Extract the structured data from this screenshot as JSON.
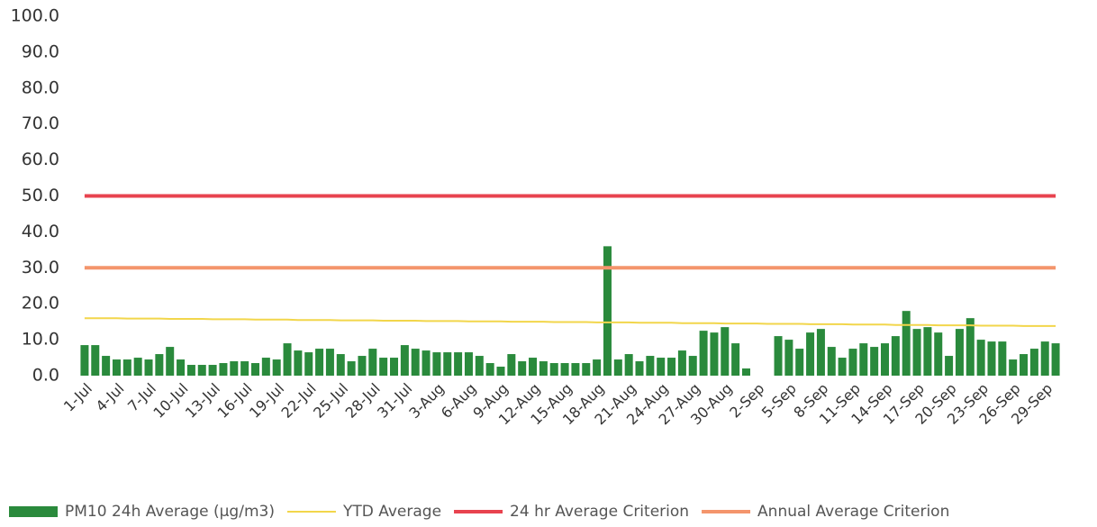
{
  "chart_data": {
    "type": "bar",
    "categories": [
      "1-Jul",
      null,
      null,
      "4-Jul",
      null,
      null,
      "7-Jul",
      null,
      null,
      "10-Jul",
      null,
      null,
      "13-Jul",
      null,
      null,
      "16-Jul",
      null,
      null,
      "19-Jul",
      null,
      null,
      "22-Jul",
      null,
      null,
      "25-Jul",
      null,
      null,
      "28-Jul",
      null,
      null,
      "31-Jul",
      null,
      null,
      "3-Aug",
      null,
      null,
      "6-Aug",
      null,
      null,
      "9-Aug",
      null,
      null,
      "12-Aug",
      null,
      null,
      "15-Aug",
      null,
      null,
      "18-Aug",
      null,
      null,
      "21-Aug",
      null,
      null,
      "24-Aug",
      null,
      null,
      "27-Aug",
      null,
      null,
      "30-Aug",
      null,
      null,
      "2-Sep",
      null,
      null,
      "5-Sep",
      null,
      null,
      "8-Sep",
      null,
      null,
      "11-Sep",
      null,
      null,
      "14-Sep",
      null,
      null,
      "17-Sep",
      null,
      null,
      "20-Sep",
      null,
      null,
      "23-Sep",
      null,
      null,
      "26-Sep",
      null,
      null,
      "29-Sep",
      null
    ],
    "series": [
      {
        "name": "PM10 24h Average (µg/m3)",
        "type": "bar",
        "color": "#2a8a3c",
        "values": [
          8.5,
          8.5,
          5.5,
          4.5,
          4.5,
          5,
          4.5,
          6,
          8,
          4.5,
          3,
          3,
          3,
          3.5,
          4,
          4,
          3.5,
          5,
          4.5,
          9,
          7,
          6.5,
          7.5,
          7.5,
          6,
          4,
          5.5,
          7.5,
          5,
          5,
          8.5,
          7.5,
          7,
          6.5,
          6.5,
          6.5,
          6.5,
          5.5,
          3.5,
          2.5,
          6,
          4,
          5,
          4,
          3.5,
          3.5,
          3.5,
          3.5,
          4.5,
          36,
          4.5,
          6,
          4,
          5.5,
          5,
          5,
          7,
          5.5,
          12.5,
          12,
          13.5,
          9,
          2,
          null,
          null,
          11,
          10,
          7.5,
          12,
          13,
          8,
          5,
          7.5,
          9,
          8,
          9,
          11,
          18,
          13,
          13.5,
          12,
          5.5,
          13,
          16,
          10,
          9.5,
          9.5,
          4.5,
          6,
          7.5,
          9.5,
          9
        ]
      },
      {
        "name": "YTD Average",
        "type": "line",
        "color": "#f2d64b",
        "values": [
          16.0,
          16.0,
          16.0,
          16.0,
          15.9,
          15.9,
          15.9,
          15.9,
          15.8,
          15.8,
          15.8,
          15.8,
          15.7,
          15.7,
          15.7,
          15.7,
          15.6,
          15.6,
          15.6,
          15.6,
          15.5,
          15.5,
          15.5,
          15.5,
          15.4,
          15.4,
          15.4,
          15.4,
          15.3,
          15.3,
          15.3,
          15.3,
          15.2,
          15.2,
          15.2,
          15.2,
          15.1,
          15.1,
          15.1,
          15.1,
          15.0,
          15.0,
          15.0,
          15.0,
          14.9,
          14.9,
          14.9,
          14.9,
          14.8,
          14.8,
          14.8,
          14.8,
          14.7,
          14.7,
          14.7,
          14.7,
          14.6,
          14.6,
          14.6,
          14.6,
          14.5,
          14.5,
          14.5,
          14.5,
          14.4,
          14.4,
          14.4,
          14.4,
          14.3,
          14.3,
          14.3,
          14.3,
          14.2,
          14.2,
          14.2,
          14.2,
          14.1,
          14.1,
          14.1,
          14.1,
          14.0,
          14.0,
          14.0,
          14.0,
          13.9,
          13.9,
          13.9,
          13.9,
          13.8,
          13.8,
          13.8,
          13.8
        ]
      },
      {
        "name": "24 hr Average Criterion",
        "type": "line",
        "color": "#e8434f",
        "values": [
          50,
          50,
          50,
          50,
          50,
          50,
          50,
          50,
          50,
          50,
          50,
          50,
          50,
          50,
          50,
          50,
          50,
          50,
          50,
          50,
          50,
          50,
          50,
          50,
          50,
          50,
          50,
          50,
          50,
          50,
          50,
          50,
          50,
          50,
          50,
          50,
          50,
          50,
          50,
          50,
          50,
          50,
          50,
          50,
          50,
          50,
          50,
          50,
          50,
          50,
          50,
          50,
          50,
          50,
          50,
          50,
          50,
          50,
          50,
          50,
          50,
          50,
          50,
          50,
          50,
          50,
          50,
          50,
          50,
          50,
          50,
          50,
          50,
          50,
          50,
          50,
          50,
          50,
          50,
          50,
          50,
          50,
          50,
          50,
          50,
          50,
          50,
          50,
          50,
          50,
          50,
          50
        ]
      },
      {
        "name": "Annual Average Criterion",
        "type": "line",
        "color": "#f4956c",
        "values": [
          30,
          30,
          30,
          30,
          30,
          30,
          30,
          30,
          30,
          30,
          30,
          30,
          30,
          30,
          30,
          30,
          30,
          30,
          30,
          30,
          30,
          30,
          30,
          30,
          30,
          30,
          30,
          30,
          30,
          30,
          30,
          30,
          30,
          30,
          30,
          30,
          30,
          30,
          30,
          30,
          30,
          30,
          30,
          30,
          30,
          30,
          30,
          30,
          30,
          30,
          30,
          30,
          30,
          30,
          30,
          30,
          30,
          30,
          30,
          30,
          30,
          30,
          30,
          30,
          30,
          30,
          30,
          30,
          30,
          30,
          30,
          30,
          30,
          30,
          30,
          30,
          30,
          30,
          30,
          30,
          30,
          30,
          30,
          30,
          30,
          30,
          30,
          30,
          30,
          30,
          30,
          30
        ]
      }
    ],
    "ylim": [
      0,
      100
    ],
    "yticks": [
      {
        "value": 0,
        "label": "0.0"
      },
      {
        "value": 10,
        "label": "10.0"
      },
      {
        "value": 20,
        "label": "20.0"
      },
      {
        "value": 30,
        "label": "30.0"
      },
      {
        "value": 40,
        "label": "40.0"
      },
      {
        "value": 50,
        "label": "50.0"
      },
      {
        "value": 60,
        "label": "60.0"
      },
      {
        "value": 70,
        "label": "70.0"
      },
      {
        "value": 80,
        "label": "80.0"
      },
      {
        "value": 90,
        "label": "90.0"
      },
      {
        "value": 100,
        "label": "100.0"
      }
    ],
    "grid": false,
    "legend": "bottom"
  }
}
